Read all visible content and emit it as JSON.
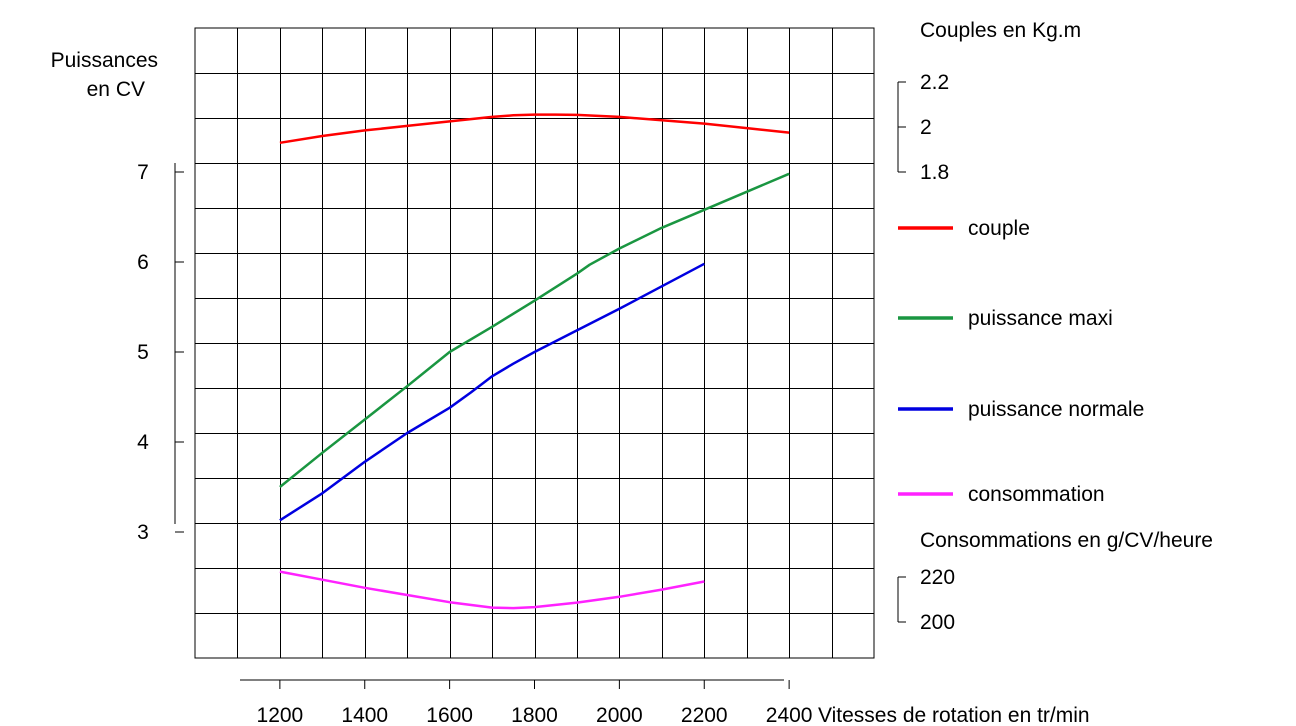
{
  "chart_data": {
    "type": "line",
    "x_axis": {
      "label": "Vitesses de rotation en tr/min",
      "ticks": [
        1200,
        1400,
        1600,
        1800,
        2000,
        2200,
        2400
      ],
      "tick_labels": [
        "1200",
        "1400",
        "1600",
        "1800",
        "2000",
        "2200",
        "2400"
      ],
      "range": [
        1000,
        2600
      ],
      "grid_step": 100
    },
    "y_axis_left": {
      "label_lines": [
        "Puissances",
        "en CV"
      ],
      "ticks": [
        3,
        4,
        5,
        6,
        7
      ],
      "tick_labels": [
        "3",
        "4",
        "5",
        "6",
        "7"
      ],
      "range": [
        1.6,
        8.6
      ],
      "grid_step": 0.5
    },
    "y_axis_couple": {
      "label": "Couples en Kg.m",
      "ticks": [
        1.8,
        2.0,
        2.2
      ],
      "tick_labels": [
        "1.8",
        "2",
        "2.2"
      ],
      "range": [
        1.8,
        2.2
      ],
      "left_equivalent": [
        7.0,
        8.0
      ]
    },
    "y_axis_conso": {
      "label": "Consommations en g/CV/heure",
      "ticks": [
        200,
        220
      ],
      "tick_labels": [
        "200",
        "220"
      ],
      "range": [
        200,
        220
      ],
      "left_equivalent": [
        2.0,
        2.5
      ]
    },
    "grid": true,
    "series": [
      {
        "name": "couple",
        "color": "#ff0000",
        "axis": "couple",
        "x": [
          1200,
          1300,
          1400,
          1500,
          1600,
          1700,
          1750,
          1800,
          1850,
          1900,
          2000,
          2100,
          2200,
          2300,
          2400
        ],
        "y": [
          1.93,
          1.96,
          1.985,
          2.005,
          2.025,
          2.045,
          2.052,
          2.055,
          2.055,
          2.054,
          2.045,
          2.03,
          2.015,
          1.995,
          1.975
        ]
      },
      {
        "name": "puissance maxi",
        "color": "#1a9641",
        "axis": "left",
        "x": [
          1200,
          1300,
          1400,
          1500,
          1600,
          1700,
          1800,
          1900,
          1930,
          2000,
          2100,
          2200,
          2300,
          2400
        ],
        "y": [
          3.5,
          3.88,
          4.25,
          4.62,
          5.0,
          5.28,
          5.57,
          5.87,
          5.97,
          6.15,
          6.38,
          6.58,
          6.78,
          6.98
        ]
      },
      {
        "name": "puissance normale",
        "color": "#0000e0",
        "axis": "left",
        "x": [
          1200,
          1250,
          1300,
          1400,
          1500,
          1600,
          1650,
          1700,
          1750,
          1800,
          1900,
          2000,
          2100,
          2200
        ],
        "y": [
          3.13,
          3.28,
          3.43,
          3.78,
          4.1,
          4.38,
          4.55,
          4.73,
          4.87,
          5.0,
          5.24,
          5.48,
          5.73,
          5.98
        ]
      },
      {
        "name": "consommation",
        "color": "#ff22ff",
        "axis": "conso",
        "x": [
          1200,
          1300,
          1400,
          1500,
          1600,
          1700,
          1750,
          1800,
          1900,
          2000,
          2100,
          2200
        ],
        "y": [
          222.4,
          218.8,
          215.2,
          212.0,
          208.8,
          206.4,
          206.2,
          206.6,
          208.6,
          211.2,
          214.4,
          218.0
        ]
      }
    ]
  }
}
